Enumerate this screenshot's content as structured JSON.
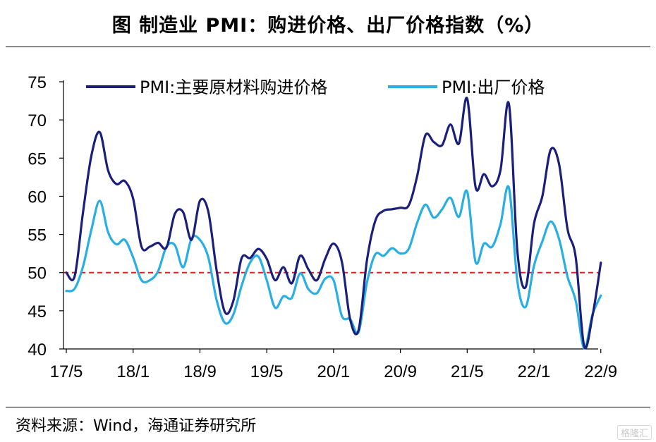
{
  "title": "图  制造业 PMI：购进价格、出厂价格指数（%）",
  "source": "资料来源：Wind，海通证券研究所",
  "watermark": "格隆汇",
  "chart_data": {
    "type": "line",
    "title": "图  制造业 PMI：购进价格、出厂价格指数（%）",
    "x_tick_labels": [
      "17/5",
      "18/1",
      "18/9",
      "19/5",
      "20/1",
      "20/9",
      "21/5",
      "22/1",
      "22/9"
    ],
    "x": [
      "17/5",
      "17/6",
      "17/7",
      "17/8",
      "17/9",
      "17/10",
      "17/11",
      "17/12",
      "18/1",
      "18/2",
      "18/3",
      "18/4",
      "18/5",
      "18/6",
      "18/7",
      "18/8",
      "18/9",
      "18/10",
      "18/11",
      "18/12",
      "19/1",
      "19/2",
      "19/3",
      "19/4",
      "19/5",
      "19/6",
      "19/7",
      "19/8",
      "19/9",
      "19/10",
      "19/11",
      "19/12",
      "20/1",
      "20/2",
      "20/3",
      "20/4",
      "20/5",
      "20/6",
      "20/7",
      "20/8",
      "20/9",
      "20/10",
      "20/11",
      "20/12",
      "21/1",
      "21/2",
      "21/3",
      "21/4",
      "21/5",
      "21/6",
      "21/7",
      "21/8",
      "21/9",
      "21/10",
      "21/11",
      "21/12",
      "22/1",
      "22/2",
      "22/3",
      "22/4",
      "22/5",
      "22/6",
      "22/7",
      "22/8",
      "22/9"
    ],
    "ylim": [
      40,
      75
    ],
    "yticks": [
      40,
      45,
      50,
      55,
      60,
      65,
      70,
      75
    ],
    "reference_line": {
      "value": 50,
      "color": "#e02020",
      "style": "dashed"
    },
    "legend_position": "top",
    "series": [
      {
        "name": "PMI:主要原材料购进价格",
        "color": "#1a1f7a",
        "values": [
          50.0,
          49.5,
          57.9,
          65.3,
          68.4,
          63.4,
          61.6,
          62.0,
          59.7,
          53.4,
          53.4,
          53.9,
          53.3,
          57.7,
          57.9,
          54.3,
          59.4,
          58.0,
          50.3,
          44.8,
          46.3,
          51.9,
          51.9,
          53.1,
          51.8,
          49.0,
          50.7,
          48.6,
          52.2,
          50.4,
          49.0,
          51.8,
          53.8,
          51.4,
          43.8,
          42.5,
          51.6,
          56.8,
          58.1,
          58.3,
          58.5,
          58.8,
          62.6,
          68.0,
          67.1,
          66.7,
          69.4,
          66.9,
          72.8,
          61.2,
          62.9,
          61.3,
          63.5,
          72.1,
          52.9,
          48.1,
          56.4,
          60.0,
          66.1,
          64.2,
          55.8,
          52.0,
          40.4,
          44.3,
          51.3
        ]
      },
      {
        "name": "PMI:出厂价格",
        "color": "#29aee3",
        "values": [
          47.6,
          47.9,
          50.8,
          55.6,
          59.4,
          55.3,
          53.7,
          54.3,
          52.0,
          49.0,
          49.0,
          50.2,
          53.4,
          53.6,
          50.7,
          54.5,
          54.3,
          52.0,
          46.4,
          43.4,
          44.5,
          48.3,
          51.3,
          52.1,
          49.0,
          45.4,
          46.9,
          46.7,
          49.9,
          47.8,
          47.3,
          49.2,
          49.0,
          44.3,
          43.9,
          42.2,
          48.7,
          52.4,
          52.2,
          53.2,
          52.5,
          53.1,
          56.5,
          58.9,
          57.2,
          58.3,
          59.8,
          57.3,
          60.6,
          51.4,
          53.8,
          53.4,
          56.4,
          61.1,
          48.9,
          45.5,
          50.9,
          54.1,
          56.7,
          54.4,
          49.5,
          46.3,
          40.1,
          44.5,
          47.0
        ]
      }
    ]
  }
}
